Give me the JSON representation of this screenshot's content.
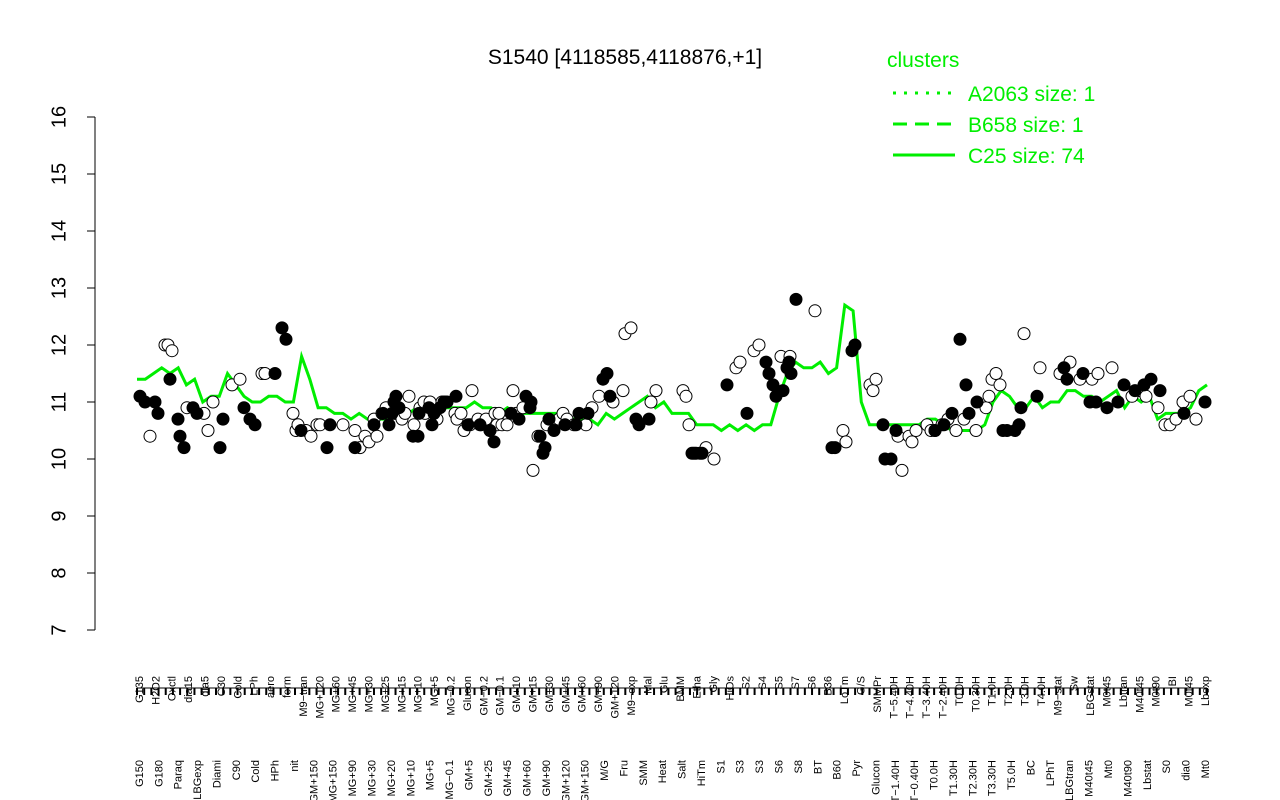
{
  "chart_data": {
    "type": "line",
    "title": "S1540 [4118585,4118876,+1]",
    "xlabel": "",
    "ylabel": "",
    "ylim": [
      7,
      16
    ],
    "yticks": [
      7,
      8,
      9,
      10,
      11,
      12,
      13,
      14,
      15,
      16
    ],
    "grid": false,
    "legend": {
      "title": "clusters",
      "placement": "top-right",
      "color": "#00ee00",
      "entries": [
        {
          "label": "A2063 size: 1",
          "style": "dotted"
        },
        {
          "label": "B658 size: 1",
          "style": "dashed"
        },
        {
          "label": "C25 size: 74",
          "style": "solid"
        }
      ]
    },
    "x_labels_top": [
      "G135",
      "H2O2",
      "Oxctl",
      "dia15",
      "dia5",
      "C30",
      "Cold",
      "LPh",
      "aero",
      "ferm",
      "M9−tran",
      "MG+120",
      "MG+60",
      "MG+45",
      "MG+30",
      "MG+25",
      "MG+15",
      "MG+10",
      "MG+5",
      "MG−0.2",
      "Glucon",
      "GM−0.2",
      "GM−0.1",
      "GM+10",
      "GM+15",
      "GM+30",
      "GM+45",
      "GM+60",
      "GM+90",
      "GM+120",
      "M9−exp",
      "Mal",
      "Glu",
      "BMM",
      "Etha",
      "Gly",
      "HiOs",
      "S2",
      "S4",
      "S5",
      "S7",
      "S6",
      "B36",
      "LoTm",
      "G/S",
      "SMMPr",
      "T−5.40H",
      "T−4.40H",
      "T−3.40H",
      "T−2.40H",
      "T0.0H",
      "T0.30H",
      "T1.0H",
      "T2.0H",
      "T3.0H",
      "T4.0H",
      "M9−stat",
      "Sw",
      "LBGstat",
      "M0t45",
      "Lbtran",
      "M40t45",
      "M0t90",
      "BI",
      "M0t45",
      "Lbexp"
    ],
    "x_labels_bottom": [
      "G150",
      "G180",
      "Paraq",
      "LBGexp",
      "Diami",
      "C90",
      "Cold",
      "HPh",
      "nit",
      "GM+150",
      "MG+150",
      "MG+90",
      "MG+30",
      "MG+20",
      "MG+10",
      "MG+5",
      "MG−0.1",
      "GM+5",
      "GM+25",
      "GM+45",
      "GM+60",
      "GM+90",
      "GM+120",
      "GM+150",
      "M/G",
      "Fru",
      "SMM",
      "Heat",
      "Salt",
      "HiTm",
      "S1",
      "S3",
      "S3",
      "S6",
      "S8",
      "BT",
      "B60",
      "Pyr",
      "Glucon",
      "T−1.40H",
      "T−0.40H",
      "T0.0H",
      "T1.30H",
      "T2.30H",
      "T3.30H",
      "T5.0H",
      "BC",
      "LPhT",
      "LBGtran",
      "M40t45",
      "Mt0",
      "M40t90",
      "Lbstat",
      "S0",
      "dia0",
      "Mt0"
    ],
    "series": [
      {
        "name": "C25 size: 74",
        "color": "#00ee00",
        "values": [
          11.4,
          11.4,
          11.5,
          11.6,
          11.5,
          11.6,
          11.3,
          11.4,
          11.0,
          11.1,
          11.1,
          11.5,
          11.3,
          11.1,
          11.0,
          11.0,
          11.1,
          11.1,
          11.0,
          11.0,
          11.8,
          11.4,
          10.9,
          10.9,
          10.8,
          10.8,
          10.7,
          10.8,
          10.7,
          10.7,
          10.7,
          10.8,
          10.9,
          10.8,
          10.9,
          10.9,
          10.9,
          10.9,
          10.9,
          10.9,
          10.9,
          11.0,
          10.9,
          10.9,
          10.8,
          10.9,
          10.8,
          10.8,
          10.8,
          10.8,
          10.8,
          10.8,
          10.8,
          10.7,
          10.7,
          10.7,
          10.6,
          10.8,
          10.7,
          10.8,
          10.9,
          11.0,
          11.1,
          10.9,
          11.0,
          10.8,
          10.8,
          10.8,
          10.6,
          10.6,
          10.6,
          10.5,
          10.6,
          10.5,
          10.6,
          10.5,
          10.6,
          10.6,
          11.1,
          11.5,
          11.7,
          11.6,
          11.6,
          11.7,
          11.5,
          11.6,
          12.7,
          12.6,
          11.0,
          10.6,
          10.6,
          10.6,
          10.6,
          10.6,
          10.6,
          10.6,
          10.7,
          10.7,
          10.6,
          10.5,
          10.5,
          10.5,
          10.5,
          10.6,
          11.0,
          11.2,
          11.1,
          10.9,
          10.9,
          11.1,
          10.9,
          11.0,
          11.0,
          11.2,
          11.2,
          11.1,
          11.1,
          11.0,
          11.1,
          11.2,
          10.9,
          11.1,
          11.0,
          11.1,
          10.7,
          10.8,
          10.8,
          10.8,
          10.9,
          11.2,
          11.3
        ]
      },
      {
        "name": "A2063 size: 1",
        "color": "#00ee00",
        "values": []
      },
      {
        "name": "B658 size: 1",
        "color": "#00ee00",
        "values": []
      }
    ],
    "points": {
      "filled_x": [
        140,
        145,
        155,
        158,
        170,
        178,
        180,
        184,
        193,
        197,
        220,
        223,
        244,
        250,
        255,
        275,
        282,
        286,
        301,
        327,
        330,
        355,
        374,
        383,
        389,
        392,
        394,
        396,
        399,
        413,
        418,
        419,
        429,
        432,
        434,
        440,
        444,
        447,
        456,
        468,
        480,
        490,
        494,
        511,
        519,
        526,
        530,
        531,
        540,
        543,
        545,
        549,
        554,
        565,
        576,
        579,
        588,
        603,
        607,
        610,
        636,
        639,
        649,
        692,
        694,
        696,
        702,
        727,
        747,
        766,
        769,
        773,
        776,
        783,
        787,
        789,
        791,
        796,
        832,
        835,
        852,
        855,
        883,
        885,
        891,
        896,
        935,
        944,
        952,
        960,
        966,
        969,
        977,
        1003,
        1007,
        1015,
        1019,
        1021,
        1037,
        1064,
        1067,
        1083,
        1090,
        1096,
        1107,
        1118,
        1124,
        1135,
        1144,
        1151,
        1160,
        1184,
        1205
      ],
      "filled_y": [
        11.1,
        11.0,
        11.0,
        10.8,
        11.4,
        10.7,
        10.4,
        10.2,
        10.9,
        10.8,
        10.2,
        10.7,
        10.9,
        10.7,
        10.6,
        11.5,
        12.3,
        12.1,
        10.5,
        10.2,
        10.6,
        10.2,
        10.6,
        10.8,
        10.6,
        10.8,
        11.0,
        11.1,
        10.9,
        10.4,
        10.4,
        10.8,
        10.9,
        10.6,
        10.8,
        10.9,
        11.0,
        11.0,
        11.1,
        10.6,
        10.6,
        10.5,
        10.3,
        10.8,
        10.7,
        11.1,
        10.9,
        11.0,
        10.4,
        10.1,
        10.2,
        10.7,
        10.5,
        10.6,
        10.6,
        10.8,
        10.8,
        11.4,
        11.5,
        11.1,
        10.7,
        10.6,
        10.7,
        10.1,
        10.1,
        10.1,
        10.1,
        11.3,
        10.8,
        11.7,
        11.5,
        11.3,
        11.1,
        11.2,
        11.6,
        11.7,
        11.5,
        12.8,
        10.2,
        10.2,
        11.9,
        12.0,
        10.6,
        10.0,
        10.0,
        10.5,
        10.5,
        10.6,
        10.8,
        12.1,
        11.3,
        10.8,
        11.0,
        10.5,
        10.5,
        10.5,
        10.6,
        10.9,
        11.1,
        11.6,
        11.4,
        11.5,
        11.0,
        11.0,
        10.9,
        11.0,
        11.3,
        11.2,
        11.3,
        11.4,
        11.2,
        10.8,
        11.0,
        10.4,
        10.3,
        10.8,
        10.9,
        10.4
      ],
      "open_x": [
        150,
        165,
        168,
        172,
        187,
        204,
        208,
        213,
        232,
        240,
        262,
        265,
        293,
        296,
        298,
        306,
        311,
        317,
        320,
        343,
        355,
        360,
        365,
        369,
        374,
        377,
        382,
        386,
        395,
        400,
        402,
        405,
        409,
        414,
        420,
        424,
        425,
        430,
        437,
        442,
        445,
        455,
        457,
        461,
        464,
        470,
        472,
        478,
        481,
        486,
        490,
        495,
        497,
        499,
        502,
        507,
        513,
        516,
        523,
        533,
        538,
        547,
        559,
        563,
        567,
        574,
        586,
        592,
        599,
        613,
        623,
        625,
        631,
        651,
        656,
        683,
        686,
        689,
        700,
        706,
        714,
        736,
        740,
        754,
        759,
        781,
        790,
        815,
        843,
        846,
        870,
        873,
        876,
        898,
        902,
        909,
        912,
        916,
        927,
        931,
        935,
        942,
        948,
        956,
        964,
        976,
        986,
        989,
        992,
        996,
        1000,
        1024,
        1040,
        1060,
        1070,
        1080,
        1092,
        1098,
        1112,
        1132,
        1140,
        1146,
        1158,
        1165,
        1170,
        1176,
        1183,
        1190,
        1196
      ],
      "open_y": [
        10.4,
        12.0,
        12.0,
        11.9,
        10.9,
        10.8,
        10.5,
        11.0,
        11.3,
        11.4,
        11.5,
        11.5,
        10.8,
        10.5,
        10.6,
        10.5,
        10.4,
        10.6,
        10.6,
        10.6,
        10.5,
        10.2,
        10.4,
        10.3,
        10.7,
        10.4,
        10.8,
        10.9,
        10.8,
        10.8,
        10.7,
        10.8,
        11.1,
        10.6,
        10.9,
        11.0,
        10.8,
        11.0,
        10.7,
        11.0,
        11.0,
        10.8,
        10.7,
        10.8,
        10.5,
        10.6,
        11.2,
        10.7,
        10.6,
        10.7,
        10.5,
        10.8,
        10.6,
        10.8,
        10.6,
        10.6,
        11.2,
        10.8,
        10.9,
        9.8,
        10.4,
        10.6,
        10.7,
        10.8,
        10.7,
        10.6,
        10.6,
        10.9,
        11.1,
        11.0,
        11.2,
        12.2,
        12.3,
        11.0,
        11.2,
        11.2,
        11.1,
        10.6,
        10.1,
        10.2,
        10.0,
        11.6,
        11.7,
        11.9,
        12.0,
        11.8,
        11.8,
        12.6,
        10.5,
        10.3,
        11.3,
        11.2,
        11.4,
        10.4,
        9.8,
        10.4,
        10.3,
        10.5,
        10.6,
        10.5,
        10.5,
        10.6,
        10.7,
        10.5,
        10.7,
        10.5,
        10.9,
        11.1,
        11.4,
        11.5,
        11.3,
        12.2,
        11.6,
        11.5,
        11.7,
        11.4,
        11.4,
        11.5,
        11.6,
        11.1,
        11.2,
        11.1,
        10.9,
        10.6,
        10.6,
        10.7,
        11.0,
        11.1,
        10.7
      ]
    }
  }
}
